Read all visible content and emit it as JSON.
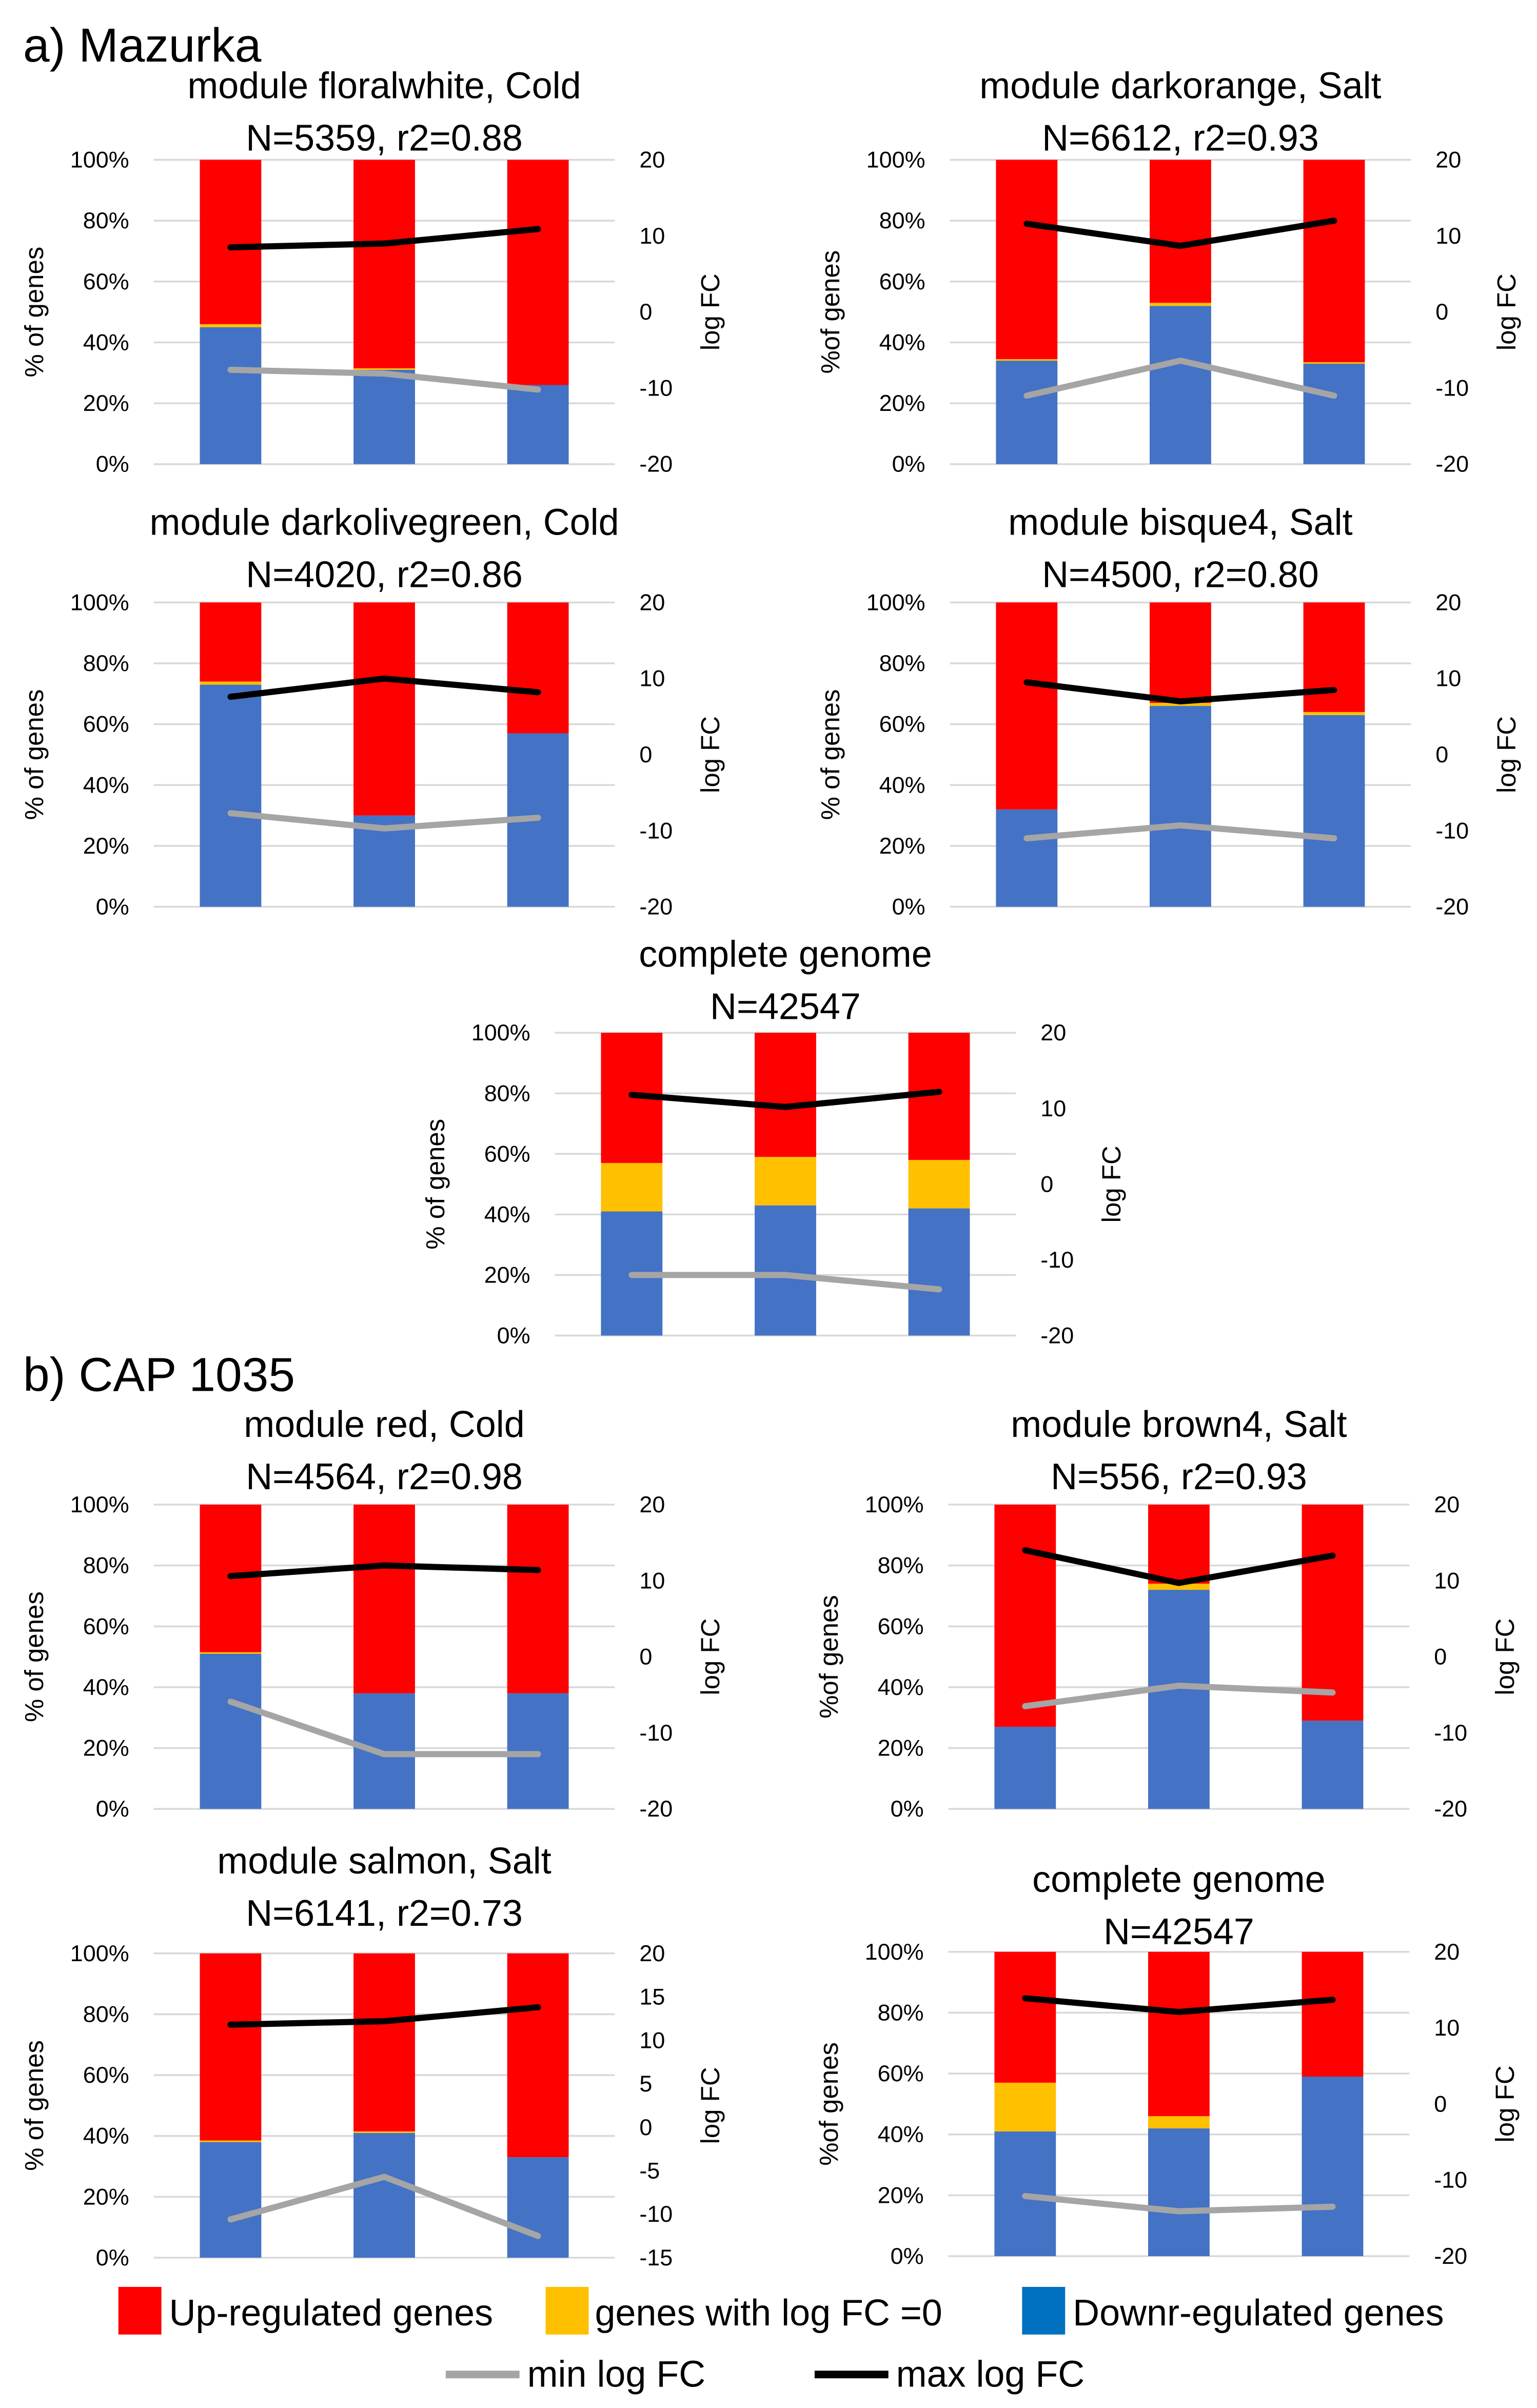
{
  "colors": {
    "up": "#FF0000",
    "zero": "#FFC000",
    "down": "#4472C4",
    "down_legend": "#0070C0",
    "min_line": "#A5A5A5",
    "max_line": "#000000",
    "grid": "#D9D9D9"
  },
  "sections": [
    {
      "label": "a) Mazurka"
    },
    {
      "label": "b) CAP 1035"
    }
  ],
  "legend": {
    "up": "Up-regulated genes",
    "zero": "genes with log FC =0",
    "down": "Downr-egulated genes",
    "min": "min log FC",
    "max": "max log FC"
  },
  "chart_data": [
    {
      "type": "bar",
      "title": "module floralwhite, Cold",
      "subtitle": "N=5359, r2=0.88",
      "ylabel": "% of genes",
      "y2label": "log FC",
      "yticks": [
        "0%",
        "20%",
        "40%",
        "60%",
        "80%",
        "100%"
      ],
      "y2lim": [
        -20,
        20
      ],
      "y2ticks": [
        "-20",
        "-10",
        "0",
        "10",
        "20"
      ],
      "series": [
        {
          "name": "Downr-egulated genes",
          "values": [
            45,
            31,
            26
          ]
        },
        {
          "name": "genes with log FC =0",
          "values": [
            1,
            0.5,
            0
          ]
        },
        {
          "name": "Up-regulated genes",
          "values": [
            54,
            68.5,
            74
          ]
        }
      ],
      "max_log_fc": [
        8.5,
        9,
        10.9
      ],
      "min_log_fc": [
        -7.6,
        -8.1,
        -10.2
      ]
    },
    {
      "type": "bar",
      "title": "module darkorange, Salt",
      "subtitle": "N=6612, r2=0.93",
      "ylabel": "%of genes",
      "y2label": "log FC",
      "yticks": [
        "0%",
        "20%",
        "40%",
        "60%",
        "80%",
        "100%"
      ],
      "y2lim": [
        -20,
        20
      ],
      "y2ticks": [
        "-20",
        "-10",
        "0",
        "10",
        "20"
      ],
      "series": [
        {
          "name": "Downr-egulated genes",
          "values": [
            34,
            52,
            33
          ]
        },
        {
          "name": "genes with log FC =0",
          "values": [
            0.5,
            1,
            0.5
          ]
        },
        {
          "name": "Up-regulated genes",
          "values": [
            65.5,
            47,
            66.5
          ]
        }
      ],
      "max_log_fc": [
        11.6,
        8.7,
        12
      ],
      "min_log_fc": [
        -11,
        -6.4,
        -11
      ]
    },
    {
      "type": "bar",
      "title": "module darkolivegreen, Cold",
      "subtitle": "N=4020, r2=0.86",
      "ylabel": "% of genes",
      "y2label": "log FC",
      "yticks": [
        "0%",
        "20%",
        "40%",
        "60%",
        "80%",
        "100%"
      ],
      "y2lim": [
        -20,
        20
      ],
      "y2ticks": [
        "-20",
        "-10",
        "0",
        "10",
        "20"
      ],
      "series": [
        {
          "name": "Downr-egulated genes",
          "values": [
            73,
            30,
            57
          ]
        },
        {
          "name": "genes with log FC =0",
          "values": [
            1,
            0,
            0
          ]
        },
        {
          "name": "Up-regulated genes",
          "values": [
            26,
            70,
            43
          ]
        }
      ],
      "max_log_fc": [
        7.6,
        10,
        8.2
      ],
      "min_log_fc": [
        -7.7,
        -9.7,
        -8.3
      ]
    },
    {
      "type": "bar",
      "title": "module bisque4, Salt",
      "subtitle": "N=4500, r2=0.80",
      "ylabel": "% of genes",
      "y2label": "log FC",
      "yticks": [
        "0%",
        "20%",
        "40%",
        "60%",
        "80%",
        "100%"
      ],
      "y2lim": [
        -20,
        20
      ],
      "y2ticks": [
        "-20",
        "-10",
        "0",
        "10",
        "20"
      ],
      "series": [
        {
          "name": "Downr-egulated genes",
          "values": [
            32,
            66,
            63
          ]
        },
        {
          "name": "genes with log FC =0",
          "values": [
            0,
            1,
            1
          ]
        },
        {
          "name": "Up-regulated genes",
          "values": [
            68,
            33,
            36
          ]
        }
      ],
      "max_log_fc": [
        9.5,
        7,
        8.5
      ],
      "min_log_fc": [
        -11,
        -9.3,
        -11
      ]
    },
    {
      "type": "bar",
      "title": "complete genome",
      "subtitle": "N=42547",
      "ylabel": "% of genes",
      "y2label": "log FC",
      "yticks": [
        "0%",
        "20%",
        "40%",
        "60%",
        "80%",
        "100%"
      ],
      "y2lim": [
        -20,
        20
      ],
      "y2ticks": [
        "-20",
        "-10",
        "0",
        "10",
        "20"
      ],
      "series": [
        {
          "name": "Downr-egulated genes",
          "values": [
            41,
            43,
            42
          ]
        },
        {
          "name": "genes with log FC =0",
          "values": [
            16,
            16,
            16
          ]
        },
        {
          "name": "Up-regulated genes",
          "values": [
            43,
            41,
            42
          ]
        }
      ],
      "max_log_fc": [
        11.8,
        10.2,
        12.2
      ],
      "min_log_fc": [
        -12,
        -12,
        -13.9
      ]
    },
    {
      "type": "bar",
      "title": "module red, Cold",
      "subtitle": "N=4564, r2=0.98",
      "ylabel": "% of genes",
      "y2label": "log FC",
      "yticks": [
        "0%",
        "20%",
        "40%",
        "60%",
        "80%",
        "100%"
      ],
      "y2lim": [
        -20,
        20
      ],
      "y2ticks": [
        "-20",
        "-10",
        "0",
        "10",
        "20"
      ],
      "series": [
        {
          "name": "Downr-egulated genes",
          "values": [
            51,
            38,
            38
          ]
        },
        {
          "name": "genes with log FC =0",
          "values": [
            0.5,
            0,
            0
          ]
        },
        {
          "name": "Up-regulated genes",
          "values": [
            48.5,
            62,
            62
          ]
        }
      ],
      "max_log_fc": [
        10.6,
        12,
        11.4
      ],
      "min_log_fc": [
        -5.9,
        -12.8,
        -12.8
      ]
    },
    {
      "type": "bar",
      "title": "module brown4, Salt",
      "subtitle": "N=556, r2=0.93",
      "ylabel": "%of genes",
      "y2label": "log FC",
      "yticks": [
        "0%",
        "20%",
        "40%",
        "60%",
        "80%",
        "100%"
      ],
      "y2lim": [
        -20,
        20
      ],
      "y2ticks": [
        "-20",
        "-10",
        "0",
        "10",
        "20"
      ],
      "series": [
        {
          "name": "Downr-egulated genes",
          "values": [
            27,
            72,
            29
          ]
        },
        {
          "name": "genes with log FC =0",
          "values": [
            0,
            2,
            0
          ]
        },
        {
          "name": "Up-regulated genes",
          "values": [
            73,
            26,
            71
          ]
        }
      ],
      "max_log_fc": [
        14,
        9.7,
        13.3
      ],
      "min_log_fc": [
        -6.5,
        -3.8,
        -4.7
      ]
    },
    {
      "type": "bar",
      "title": "module salmon, Salt",
      "subtitle": "N=6141, r2=0.73",
      "ylabel": "% of genes",
      "y2label": "log FC",
      "yticks": [
        "0%",
        "20%",
        "40%",
        "60%",
        "80%",
        "100%"
      ],
      "y2lim": [
        -15,
        20
      ],
      "y2ticks": [
        "-15",
        "-10",
        "-5",
        "0",
        "5",
        "10",
        "15",
        "20"
      ],
      "series": [
        {
          "name": "Downr-egulated genes",
          "values": [
            38,
            41,
            33
          ]
        },
        {
          "name": "genes with log FC =0",
          "values": [
            0.5,
            0.5,
            0
          ]
        },
        {
          "name": "Up-regulated genes",
          "values": [
            61.5,
            58.5,
            67
          ]
        }
      ],
      "max_log_fc": [
        11.8,
        12.2,
        13.8
      ],
      "min_log_fc": [
        -10.6,
        -5.7,
        -12.5
      ]
    },
    {
      "type": "bar",
      "title": "complete genome",
      "subtitle": "N=42547",
      "ylabel": "%of genes",
      "y2label": "log FC",
      "yticks": [
        "0%",
        "20%",
        "40%",
        "60%",
        "80%",
        "100%"
      ],
      "y2lim": [
        -20,
        20
      ],
      "y2ticks": [
        "-20",
        "-10",
        "0",
        "10",
        "20"
      ],
      "series": [
        {
          "name": "Downr-egulated genes",
          "values": [
            41,
            42,
            59
          ]
        },
        {
          "name": "genes with log FC =0",
          "values": [
            16,
            4,
            0
          ]
        },
        {
          "name": "Up-regulated genes",
          "values": [
            43,
            54,
            41
          ]
        }
      ],
      "max_log_fc": [
        13.9,
        12.1,
        13.7
      ],
      "min_log_fc": [
        -12.1,
        -14.1,
        -13.5
      ]
    }
  ]
}
